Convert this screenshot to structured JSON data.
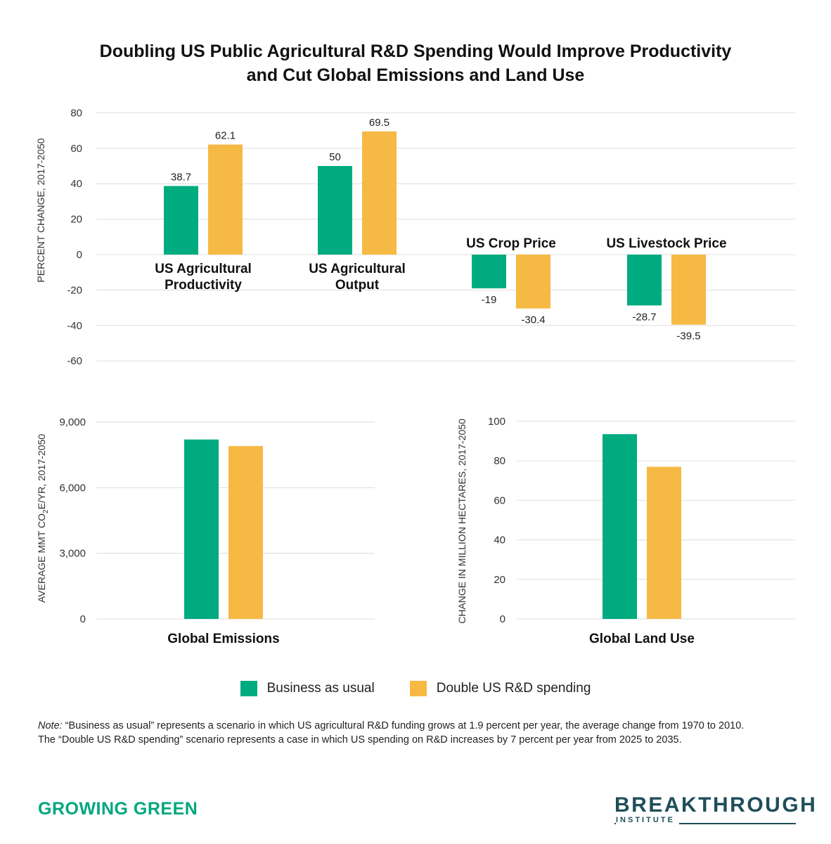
{
  "title_lines": [
    "Doubling US Public Agricultural R&D Spending Would Improve Productivity",
    "and Cut Global Emissions and Land Use"
  ],
  "colors": {
    "bau": "#00ab80",
    "double": "#f6b944",
    "grid": "#dddddd"
  },
  "chart_data": [
    {
      "type": "bar",
      "ylabel": "PERCENT CHANGE, 2017-2050",
      "ylim": [
        -60,
        80
      ],
      "yticks": [
        80,
        60,
        40,
        20,
        0,
        -20,
        -40,
        -60
      ],
      "ytick_labels": [
        "80",
        "60",
        "40",
        "20",
        "0",
        "-20",
        "-40",
        "-60"
      ],
      "categories": [
        [
          "US Agricultural",
          "Productivity"
        ],
        [
          "US Agricultural",
          "Output"
        ],
        [
          "US Crop Price"
        ],
        [
          "US Livestock Price"
        ]
      ],
      "series": [
        {
          "name": "Business as usual",
          "values": [
            38.7,
            50,
            -19,
            -28.7
          ],
          "labels": [
            "38.7",
            "50",
            "-19",
            "-28.7"
          ]
        },
        {
          "name": "Double US R&D spending",
          "values": [
            62.1,
            69.5,
            -30.4,
            -39.5
          ],
          "labels": [
            "62.1",
            "69.5",
            "-30.4",
            "-39.5"
          ]
        }
      ],
      "grid": true
    },
    {
      "type": "bar",
      "ylabel_parts": [
        "AVERAGE MMT CO",
        "2",
        "E/YR, 2017-2050"
      ],
      "ylim": [
        0,
        9000
      ],
      "yticks": [
        9000,
        6000,
        3000,
        0
      ],
      "ytick_labels": [
        "9,000",
        "6,000",
        "3,000",
        "0"
      ],
      "categories": [
        "Global Emissions"
      ],
      "series": [
        {
          "name": "Business as usual",
          "values": [
            8200
          ]
        },
        {
          "name": "Double US R&D spending",
          "values": [
            7900
          ]
        }
      ],
      "grid": true
    },
    {
      "type": "bar",
      "ylabel": "CHANGE IN MILLION HECTARES, 2017-2050",
      "ylim": [
        0,
        100
      ],
      "yticks": [
        100,
        80,
        60,
        40,
        20,
        0
      ],
      "ytick_labels": [
        "100",
        "80",
        "60",
        "40",
        "20",
        "0"
      ],
      "categories": [
        "Global Land Use"
      ],
      "series": [
        {
          "name": "Business as usual",
          "values": [
            93.5
          ]
        },
        {
          "name": "Double US R&D spending",
          "values": [
            77
          ]
        }
      ],
      "grid": true
    }
  ],
  "legend": {
    "bau_label": "Business as usual",
    "double_label": "Double US R&D spending"
  },
  "note": {
    "lead": "Note:",
    "line1": " “Business as usual” represents a scenario in which US agricultural R&D funding grows at 1.9 percent per year, the average change from 1970 to 2010.",
    "line2": "The “Double US R&D spending” scenario represents a case in which US spending on R&D increases by 7 percent per year from 2025 to 2035."
  },
  "branding": {
    "left": "GROWING GREEN",
    "right_word": "BREAKTHROUGH",
    "right_sub": "INSTITUTE"
  }
}
